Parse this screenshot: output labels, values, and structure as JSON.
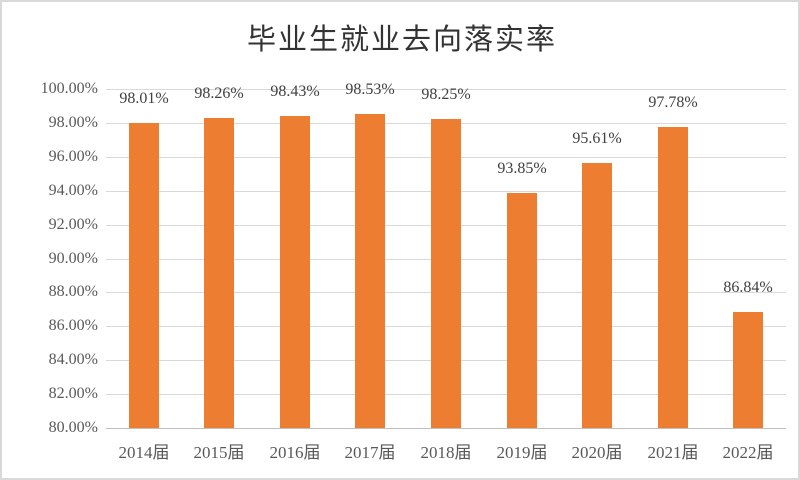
{
  "chart": {
    "bar_color": "#ED7D31",
    "gridline_color": "#D9D9D9",
    "axis_line_color": "#BFBFBF",
    "title_color": "#333333",
    "axis_text_color": "#595959",
    "data_label_color": "#404040",
    "frame_border_color": "#D9D9D9"
  },
  "chart_data": {
    "type": "bar",
    "title": "毕业生就业去向落实率",
    "categories": [
      "2014届",
      "2015届",
      "2016届",
      "2017届",
      "2018届",
      "2019届",
      "2020届",
      "2021届",
      "2022届"
    ],
    "values": [
      98.01,
      98.26,
      98.43,
      98.53,
      98.25,
      93.85,
      95.61,
      97.78,
      86.84
    ],
    "data_labels": [
      "98.01%",
      "98.26%",
      "98.43%",
      "98.53%",
      "98.25%",
      "93.85%",
      "95.61%",
      "97.78%",
      "86.84%"
    ],
    "xlabel": "",
    "ylabel": "",
    "ylim": [
      80,
      100
    ],
    "ytick_step": 2,
    "ytick_values": [
      80,
      82,
      84,
      86,
      88,
      90,
      92,
      94,
      96,
      98,
      100
    ],
    "ytick_labels": [
      "80.00%",
      "82.00%",
      "84.00%",
      "86.00%",
      "88.00%",
      "90.00%",
      "92.00%",
      "94.00%",
      "96.00%",
      "98.00%",
      "100.00%"
    ],
    "grid": true,
    "legend": "none",
    "bar_color": "#ED7D31"
  }
}
